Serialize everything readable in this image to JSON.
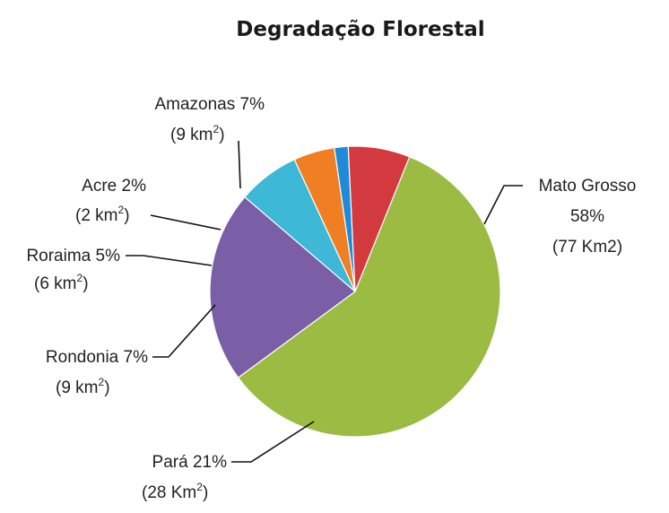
{
  "chart_data": {
    "type": "pie",
    "title": "Degradação Florestal",
    "slices": [
      {
        "name": "Mato Grosso",
        "percent_label": "58%",
        "area_label": "(77 Km2)",
        "area_unit": "",
        "value": 77,
        "color": "#9BBB43"
      },
      {
        "name": "Pará",
        "percent_label": "21%",
        "area_label": "(28 Km",
        "area_unit": ")",
        "value": 28,
        "color": "#7A5EA6"
      },
      {
        "name": "Rondonia",
        "percent_label": "7%",
        "area_label": "(9 km",
        "area_unit": ")",
        "value": 9,
        "color": "#3DB8D6"
      },
      {
        "name": "Roraima",
        "percent_label": "5%",
        "area_label": "(6 km",
        "area_unit": ")",
        "value": 6,
        "color": "#F07F23"
      },
      {
        "name": "Acre",
        "percent_label": "2%",
        "area_label": "(2 km",
        "area_unit": ")",
        "value": 2,
        "color": "#1F8BD8"
      },
      {
        "name": "Amazonas",
        "percent_label": "7%",
        "area_label": "(9 km",
        "area_unit": ")",
        "value": 9,
        "color": "#D33A3F"
      }
    ]
  }
}
